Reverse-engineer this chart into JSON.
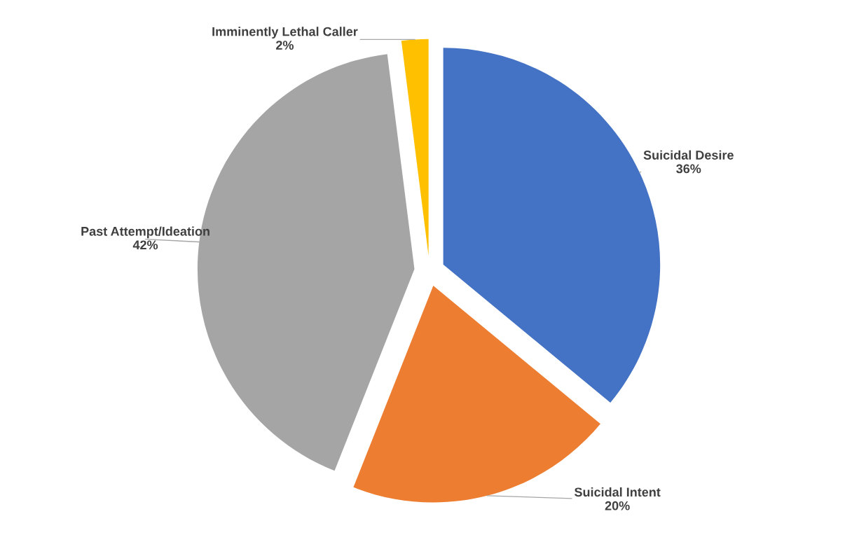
{
  "chart_data": {
    "type": "pie",
    "categories": [
      "Suicidal Desire",
      "Suicidal Intent",
      "Past Attempt/Ideation",
      "Imminently Lethal Caller"
    ],
    "values": [
      36,
      20,
      42,
      2
    ],
    "colors": [
      "#4472c4",
      "#ed7d31",
      "#a5a5a5",
      "#ffc000"
    ],
    "value_labels": [
      "36%",
      "20%",
      "42%",
      "2%"
    ],
    "legend": false
  }
}
